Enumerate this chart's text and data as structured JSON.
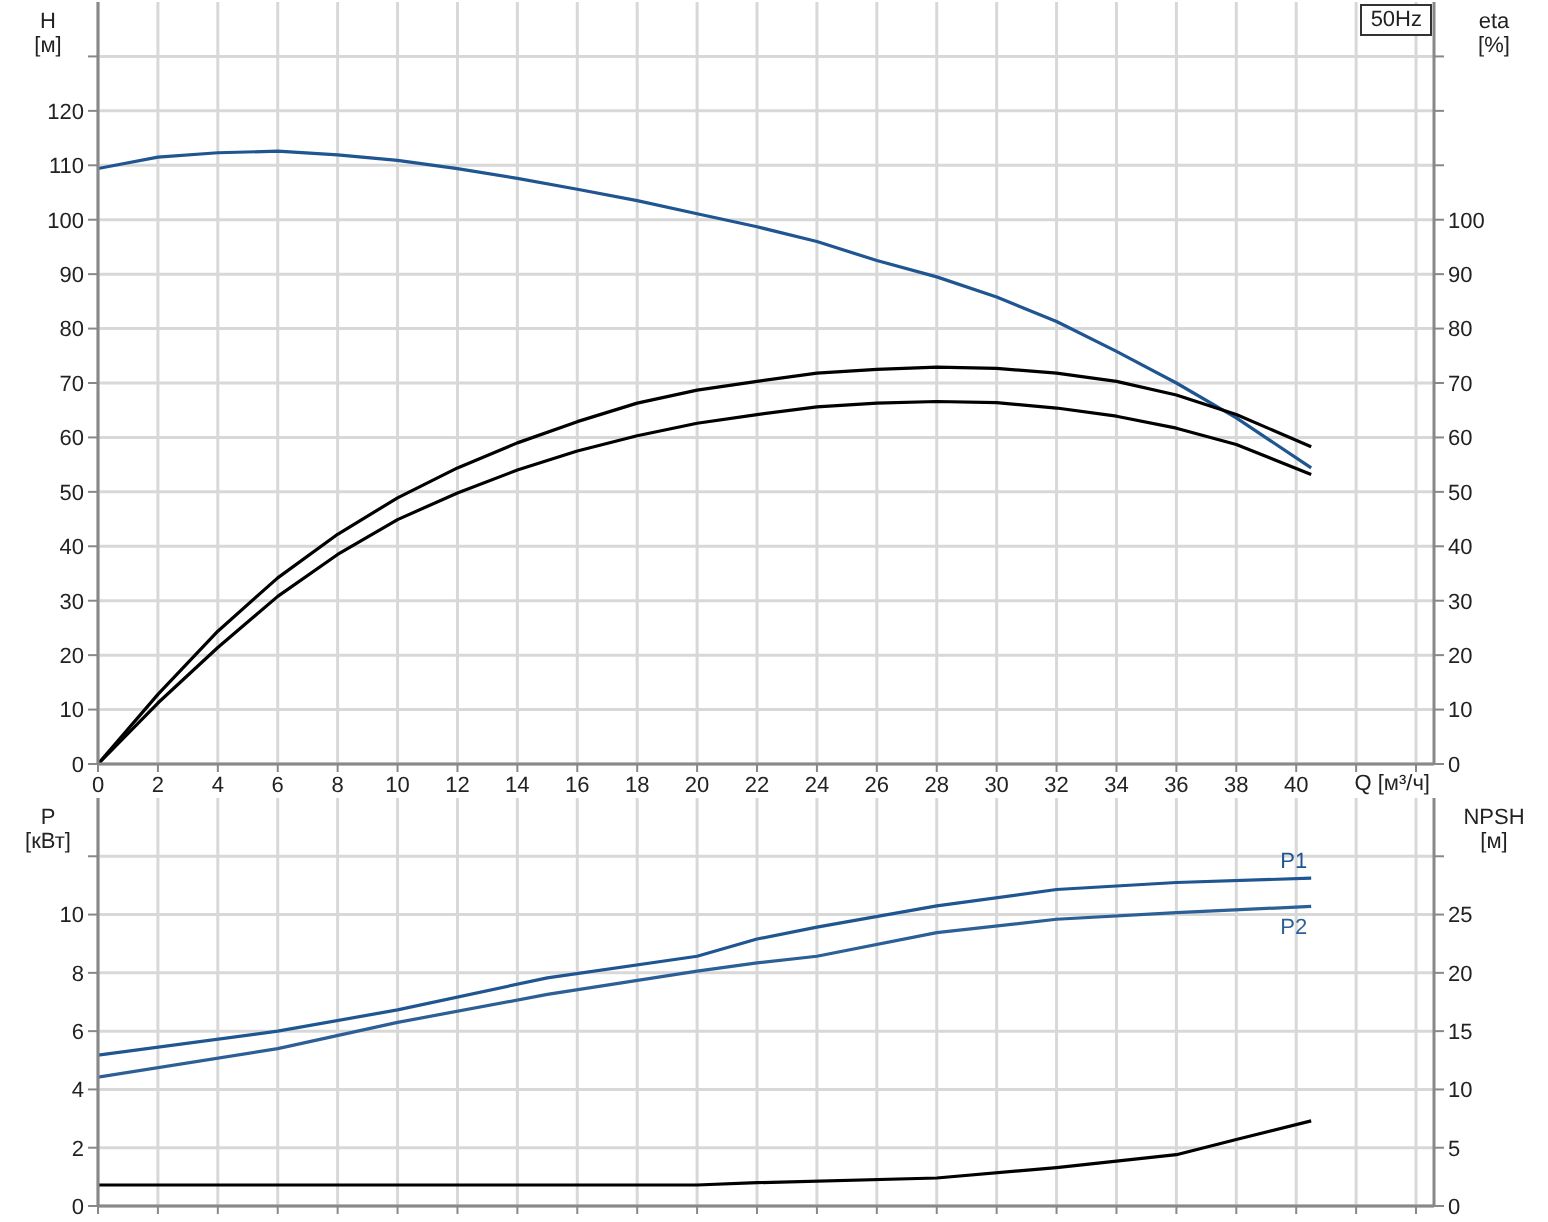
{
  "chart_data": [
    {
      "type": "line",
      "xlabel": "Q [м³/ч]",
      "ylabel": "H [м]",
      "y2label": "eta [%]",
      "annotations": [
        "50Hz"
      ],
      "xlim": [
        0,
        44.6
      ],
      "xticks": [
        0,
        2,
        4,
        6,
        8,
        10,
        12,
        14,
        16,
        18,
        20,
        22,
        24,
        26,
        28,
        30,
        32,
        34,
        36,
        38,
        40,
        {
          "value": 42,
          "label": null
        },
        {
          "value": 44,
          "label": null
        }
      ],
      "ylim": [
        0,
        140
      ],
      "yticks": [
        0,
        10,
        20,
        30,
        40,
        50,
        60,
        70,
        80,
        90,
        100,
        110,
        120,
        {
          "value": 130,
          "label": null
        }
      ],
      "y2lim": [
        0,
        140
      ],
      "y2ticks": [
        0,
        10,
        20,
        30,
        40,
        50,
        60,
        70,
        80,
        90,
        100,
        {
          "value": 110,
          "label": null
        },
        {
          "value": 120,
          "label": null
        },
        {
          "value": 130,
          "label": null
        }
      ],
      "grid": true,
      "marker": "none",
      "series": [
        {
          "color": "#1f5591",
          "x": [
            0,
            2,
            4,
            6,
            8,
            10,
            12,
            14,
            16,
            18,
            20,
            22,
            24,
            26,
            28,
            30,
            32,
            34,
            36,
            38,
            40.5
          ],
          "values": [
            109.4,
            111.5,
            112.3,
            112.6,
            111.9,
            110.9,
            109.4,
            107.6,
            105.6,
            103.5,
            101.1,
            98.7,
            96.0,
            92.5,
            89.5,
            85.8,
            81.3,
            75.8,
            70.0,
            63.6,
            54.4
          ]
        },
        {
          "color": "#000000",
          "axis": "y2",
          "x": [
            0,
            2,
            4,
            6,
            8,
            10,
            12,
            14,
            16,
            18,
            20,
            22,
            24,
            26,
            28,
            30,
            32,
            34,
            36,
            38,
            40.5
          ],
          "values": [
            0,
            12.8,
            24.4,
            34.2,
            42.2,
            48.9,
            54.4,
            59.0,
            62.9,
            66.3,
            68.7,
            70.3,
            71.8,
            72.5,
            72.9,
            72.7,
            71.8,
            70.3,
            67.8,
            64.2,
            58.3
          ]
        },
        {
          "color": "#000000",
          "axis": "y2",
          "x": [
            0,
            2,
            4,
            6,
            8,
            10,
            12,
            14,
            16,
            18,
            20,
            22,
            24,
            26,
            28,
            30,
            32,
            34,
            36,
            38,
            40.5
          ],
          "values": [
            0,
            11.2,
            21.4,
            30.8,
            38.5,
            44.9,
            49.8,
            54.0,
            57.5,
            60.3,
            62.6,
            64.2,
            65.6,
            66.3,
            66.6,
            66.4,
            65.4,
            63.9,
            61.7,
            58.7,
            53.2
          ]
        }
      ]
    },
    {
      "type": "line",
      "ylabel": "P [кВт]",
      "y2label": "NPSH [м]",
      "xlim": [
        0,
        44.6
      ],
      "xticks": [
        0,
        2,
        4,
        6,
        8,
        10,
        12,
        14,
        16,
        18,
        20,
        22,
        24,
        26,
        28,
        30,
        32,
        34,
        36,
        38,
        40,
        42,
        44
      ],
      "ylim": [
        0,
        14
      ],
      "yticks": [
        0,
        2,
        4,
        6,
        8,
        10,
        {
          "value": 12,
          "label": null
        }
      ],
      "y2lim": [
        0,
        35
      ],
      "y2ticks": [
        0,
        5,
        10,
        15,
        20,
        25,
        {
          "value": 30,
          "label": null
        }
      ],
      "tick_labels": "y",
      "grid": true,
      "marker": "none",
      "series": [
        {
          "name": "P1",
          "color": "#1f5591",
          "x": [
            0,
            6,
            10,
            15,
            20,
            22,
            24,
            28,
            32,
            36,
            40.5
          ],
          "values": [
            5.18,
            6.0,
            6.73,
            7.83,
            8.57,
            9.16,
            9.57,
            10.3,
            10.86,
            11.1,
            11.25
          ]
        },
        {
          "name": "P2",
          "color": "#2c5f96",
          "x": [
            0,
            6,
            10,
            15,
            20,
            22,
            24,
            28,
            32,
            36,
            40.5
          ],
          "values": [
            4.42,
            5.4,
            6.3,
            7.26,
            8.06,
            8.34,
            8.57,
            9.38,
            9.84,
            10.07,
            10.28
          ]
        },
        {
          "color": "#000000",
          "axis": "y2",
          "x": [
            0,
            15,
            20,
            22,
            28,
            32,
            36,
            38,
            40.5
          ],
          "values": [
            1.8,
            1.8,
            1.8,
            2.0,
            2.4,
            3.3,
            4.4,
            5.7,
            7.3
          ]
        }
      ]
    }
  ]
}
